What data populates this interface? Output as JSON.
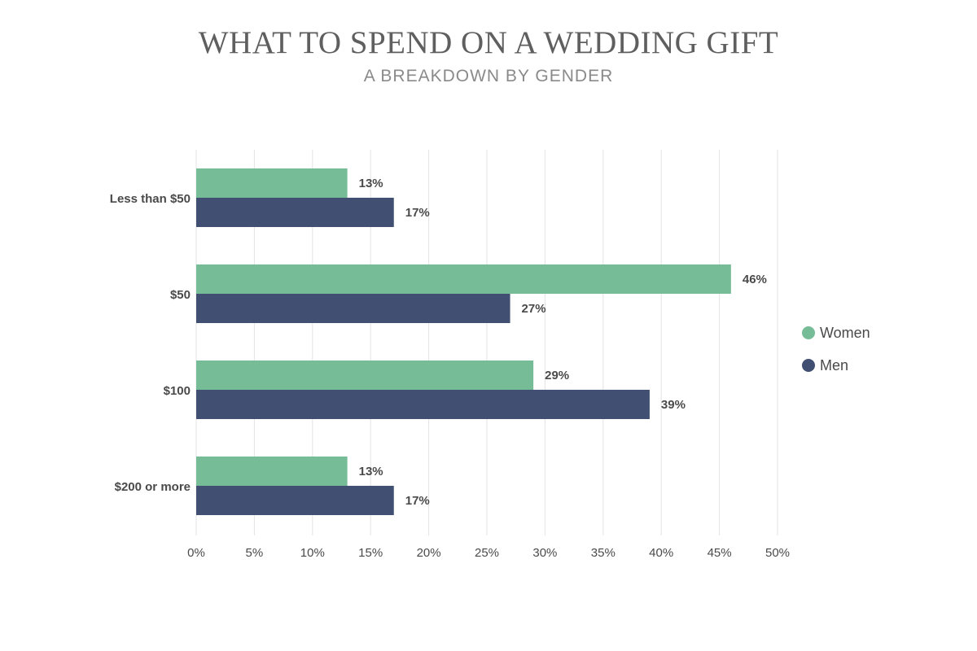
{
  "chart_data": {
    "type": "bar",
    "orientation": "horizontal",
    "title": "WHAT TO SPEND ON A WEDDING GIFT",
    "subtitle": "A BREAKDOWN BY GENDER",
    "categories": [
      "Less than $50",
      "$50",
      "$100",
      "$200 or more"
    ],
    "series": [
      {
        "name": "Women",
        "values": [
          13,
          46,
          29,
          13
        ],
        "labels": [
          "13%",
          "46%",
          "29%",
          "13%"
        ],
        "color": "#76bd97"
      },
      {
        "name": "Men",
        "values": [
          17,
          27,
          39,
          17
        ],
        "labels": [
          "17%",
          "27%",
          "39%",
          "17%"
        ],
        "color": "#414f72"
      }
    ],
    "xlim": [
      0,
      50
    ],
    "xticks": [
      0,
      5,
      10,
      15,
      20,
      25,
      30,
      35,
      40,
      45,
      50
    ],
    "xtick_labels": [
      "0%",
      "5%",
      "10%",
      "15%",
      "20%",
      "25%",
      "30%",
      "35%",
      "40%",
      "45%",
      "50%"
    ],
    "grid": true,
    "legend_position": "right"
  }
}
